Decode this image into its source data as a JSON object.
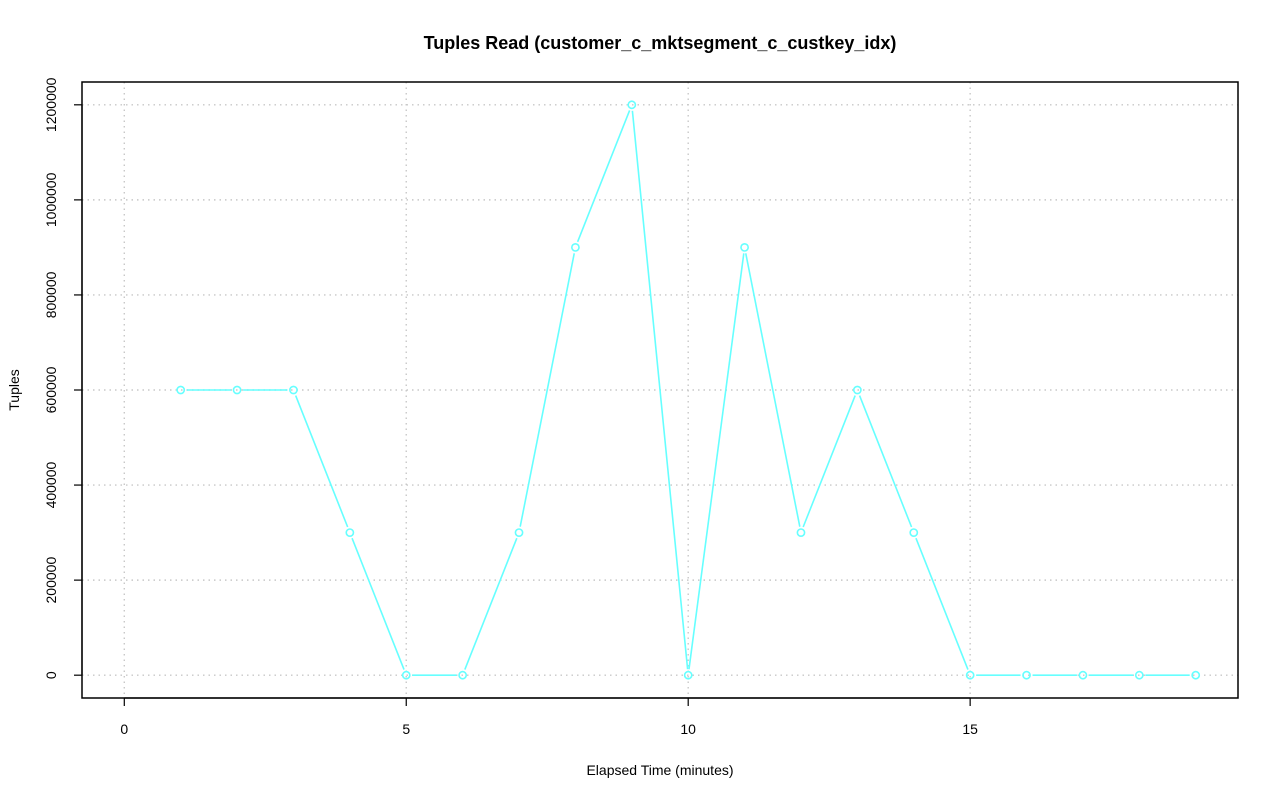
{
  "chart_data": {
    "type": "line",
    "title": "Tuples Read (customer_c_mktsegment_c_custkey_idx)",
    "xlabel": "Elapsed Time (minutes)",
    "ylabel": "Tuples",
    "xlim": [
      -0.75,
      19.75
    ],
    "ylim": [
      -48000,
      1248000
    ],
    "x_ticks": [
      0,
      5,
      10,
      15
    ],
    "x_tick_labels": [
      "0",
      "5",
      "10",
      "15"
    ],
    "y_ticks": [
      0,
      200000,
      400000,
      600000,
      800000,
      1000000,
      1200000
    ],
    "y_tick_labels": [
      "0",
      "200000",
      "400000",
      "600000",
      "800000",
      "1000000",
      "1200000"
    ],
    "grid": true,
    "series": [
      {
        "color": "#66ffff",
        "marker": "open-circle",
        "x": [
          1,
          2,
          3,
          4,
          5,
          6,
          7,
          8,
          9,
          10,
          11,
          12,
          13,
          14,
          15,
          16,
          17,
          18,
          19
        ],
        "y": [
          600000,
          600000,
          600000,
          300000,
          0,
          0,
          300000,
          900000,
          1200000,
          0,
          900000,
          300000,
          600000,
          300000,
          0,
          0,
          0,
          0,
          0
        ]
      }
    ]
  }
}
